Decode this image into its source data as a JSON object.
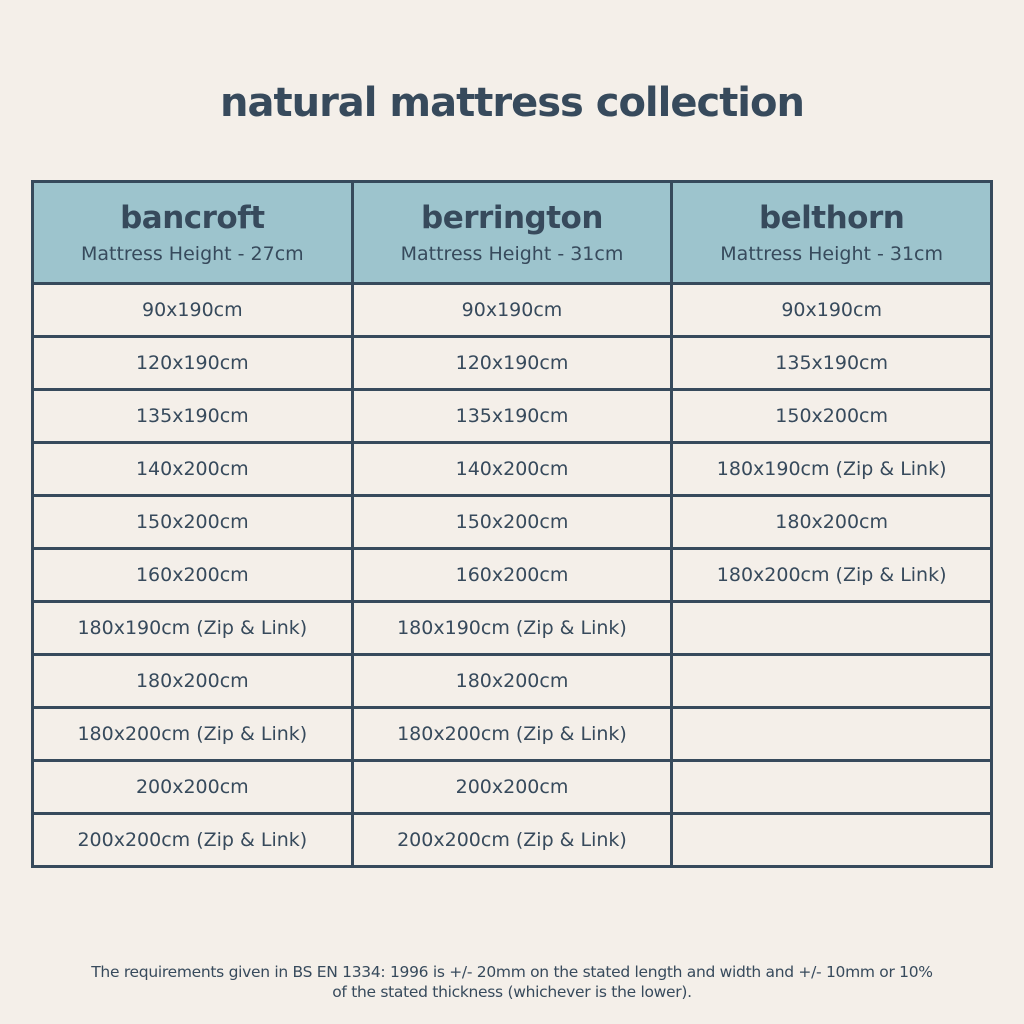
{
  "title": "natural mattress collection",
  "columns": [
    {
      "name": "bancroft",
      "height": "Mattress Height - 27cm",
      "sizes": [
        "90x190cm",
        "120x190cm",
        "135x190cm",
        "140x200cm",
        "150x200cm",
        "160x200cm",
        "180x190cm (Zip & Link)",
        "180x200cm",
        "180x200cm (Zip & Link)",
        "200x200cm",
        "200x200cm (Zip & Link)"
      ]
    },
    {
      "name": "berrington",
      "height": "Mattress Height - 31cm",
      "sizes": [
        "90x190cm",
        "120x190cm",
        "135x190cm",
        "140x200cm",
        "150x200cm",
        "160x200cm",
        "180x190cm (Zip & Link)",
        "180x200cm",
        "180x200cm (Zip & Link)",
        "200x200cm",
        "200x200cm (Zip & Link)"
      ]
    },
    {
      "name": "belthorn",
      "height": "Mattress Height - 31cm",
      "sizes": [
        "90x190cm",
        "135x190cm",
        "150x200cm",
        "180x190cm (Zip & Link)",
        "180x200cm",
        "180x200cm (Zip & Link)",
        "",
        "",
        "",
        "",
        ""
      ]
    }
  ],
  "footnote_line1": "The requirements given in BS EN 1334: 1996 is +/- 20mm on the stated length and width and +/- 10mm or 10%",
  "footnote_line2": "of the stated thickness (whichever is the lower).",
  "colors": {
    "background": "#f4efe9",
    "header": "#9dc4cd",
    "text": "#374a5c"
  }
}
